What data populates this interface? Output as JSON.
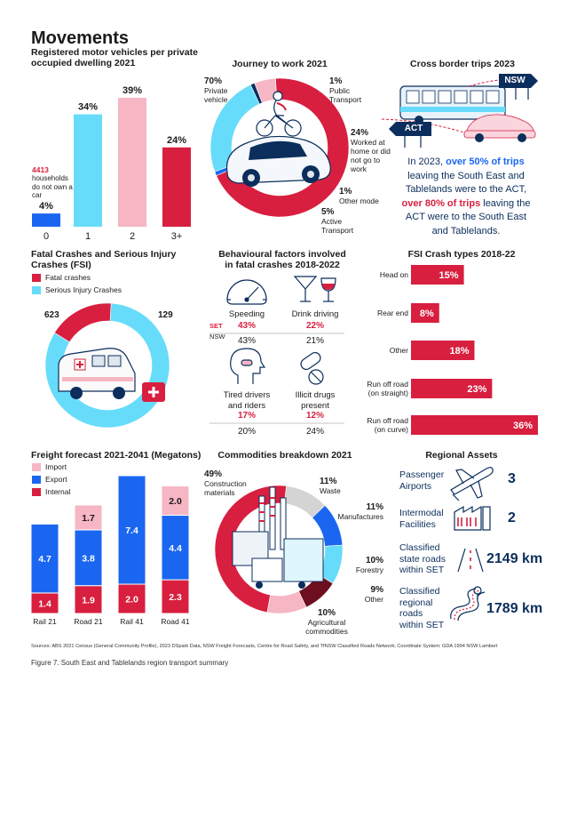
{
  "title": "Movements",
  "colors": {
    "red": "#d81f3f",
    "cyan": "#66dcfa",
    "pink": "#f6b6c4",
    "blue": "#1a66f0",
    "navy": "#0b2e5c",
    "grey": "#d4d4d4",
    "darkred": "#6e0f1f"
  },
  "vehicles": {
    "title": "Registered motor vehicles per private occupied dwelling 2021",
    "note_value": "4413",
    "note_text": "households do not own a car",
    "chart_data": {
      "type": "bar",
      "categories": [
        "0",
        "1",
        "2",
        "3+"
      ],
      "values": [
        4,
        34,
        39,
        24
      ],
      "value_labels": [
        "4%",
        "34%",
        "39%",
        "24%"
      ],
      "colors": [
        "#1a66f0",
        "#66dcfa",
        "#f6b6c4",
        "#d81f3f"
      ],
      "ylim": [
        0,
        40
      ]
    }
  },
  "journey": {
    "title": "Journey to work 2021",
    "chart_data": {
      "type": "pie",
      "labels": [
        "Private vehicle",
        "Public Transport",
        "Worked at home or did not go to work",
        "Other mode",
        "Active Transport"
      ],
      "values": [
        70,
        1,
        24,
        1,
        5
      ],
      "value_labels": [
        "70%",
        "1%",
        "24%",
        "1%",
        "5%"
      ],
      "colors": [
        "#d81f3f",
        "#1a66f0",
        "#66dcfa",
        "#0b2e5c",
        "#f6b6c4"
      ]
    }
  },
  "border": {
    "title": "Cross border trips 2023",
    "sign_nsw": "NSW",
    "sign_act": "ACT",
    "line1_pre": "In 2023, ",
    "line1_hl": "over 50% of trips",
    "line2": "leaving the South East and",
    "line3": "Tablelands were to the ACT,",
    "line4_hl": "over 80% of trips",
    "line4_post": " leaving the",
    "line5": "ACT were to the South East",
    "line6": "and Tablelands."
  },
  "fsi": {
    "title_1": "Fatal Crashes and Serious Injury",
    "title_2": "Crashes (FSI)",
    "legend": [
      "Fatal crashes",
      "Serious Injury Crashes"
    ],
    "chart_data": {
      "type": "pie",
      "labels": [
        "Serious Injury Crashes",
        "Fatal crashes"
      ],
      "values": [
        623,
        129
      ],
      "value_labels": [
        "623",
        "129"
      ],
      "colors": [
        "#66dcfa",
        "#d81f3f"
      ]
    }
  },
  "behaviour": {
    "title_1": "Behavioural factors involved",
    "title_2": "in fatal crashes 2018-2022",
    "set_label": "SET",
    "nsw_label": "NSW",
    "chart_data": {
      "type": "table",
      "columns": [
        "SET",
        "NSW"
      ],
      "rows": [
        {
          "label": "Speeding",
          "set": "43%",
          "nsw": "43%"
        },
        {
          "label": "Drink driving",
          "set": "22%",
          "nsw": "21%"
        },
        {
          "label_1": "Tired drivers",
          "label_2": "and riders",
          "set": "17%",
          "nsw": "20%"
        },
        {
          "label_1": "Illicit drugs",
          "label_2": "present",
          "set": "12%",
          "nsw": "24%"
        }
      ]
    }
  },
  "crash_types": {
    "title": "FSI Crash types 2018-22",
    "chart_data": {
      "type": "bar",
      "orientation": "horizontal",
      "categories": [
        [
          "Head on"
        ],
        [
          "Rear end"
        ],
        [
          "Other"
        ],
        [
          "Run off road",
          "(on straight)"
        ],
        [
          "Run off road",
          "(on curve)"
        ]
      ],
      "values": [
        15,
        8,
        18,
        23,
        36
      ],
      "value_labels": [
        "15%",
        "8%",
        "18%",
        "23%",
        "36%"
      ],
      "xlim": [
        0,
        36
      ]
    }
  },
  "freight": {
    "title": "Freight forecast 2021-2041 (Megatons)",
    "legend": [
      "Import",
      "Export",
      "Internal"
    ],
    "chart_data": {
      "type": "bar",
      "stacked": true,
      "categories": [
        "Rail 21",
        "Road 21",
        "Rail 41",
        "Road 41"
      ],
      "series": [
        {
          "name": "Internal",
          "values": [
            1.4,
            1.9,
            2.0,
            2.3
          ],
          "labels": [
            "1.4",
            "1.9",
            "2.0",
            "2.3"
          ],
          "color": "#d81f3f"
        },
        {
          "name": "Export",
          "values": [
            4.7,
            3.8,
            7.4,
            4.4
          ],
          "labels": [
            "4.7",
            "3.8",
            "7.4",
            "4.4"
          ],
          "color": "#1a66f0"
        },
        {
          "name": "Import",
          "values": [
            0,
            1.7,
            0,
            2.0
          ],
          "labels": [
            "",
            "1.7",
            "",
            "2.0"
          ],
          "color": "#f6b6c4"
        }
      ]
    }
  },
  "commodities": {
    "title": "Commodities breakdown 2021",
    "chart_data": {
      "type": "pie",
      "labels": [
        "Construction materials",
        "Waste",
        "Manufactures",
        "Forestry",
        "Other",
        "Agricultural commodities"
      ],
      "values": [
        49,
        11,
        11,
        10,
        9,
        10
      ],
      "value_labels": [
        "49%",
        "11%",
        "11%",
        "10%",
        "9%",
        "10%"
      ],
      "colors": [
        "#d81f3f",
        "#d4d4d4",
        "#1a66f0",
        "#66dcfa",
        "#6e0f1f",
        "#f6b6c4"
      ]
    }
  },
  "assets": {
    "title": "Regional Assets",
    "items": [
      {
        "label_1": "Passenger",
        "label_2": "Airports",
        "value": "3",
        "icon": "plane-icon"
      },
      {
        "label_1": "Intermodal",
        "label_2": "Facilities",
        "value": "2",
        "icon": "factory-icon"
      },
      {
        "label_1": "Classified",
        "label_2": "state roads",
        "label_3": "within SET",
        "value": "2149 km",
        "icon": "road-icon"
      },
      {
        "label_1": "Classified",
        "label_2": "regional",
        "label_3": "roads",
        "label_4": "within SET",
        "value": "1789 km",
        "icon": "winding-road-icon"
      }
    ]
  },
  "sources": "Sources: ABS 2021 Census (General Community Profile), 2023 DSpark Data, NSW Freight Forecasts, Centre for Road Safety, and TfNSW Classified Roads Network; Coordinate System: GDA 1994 NSW Lambert",
  "caption": "Figure 7. South East and Tablelands region transport summary"
}
